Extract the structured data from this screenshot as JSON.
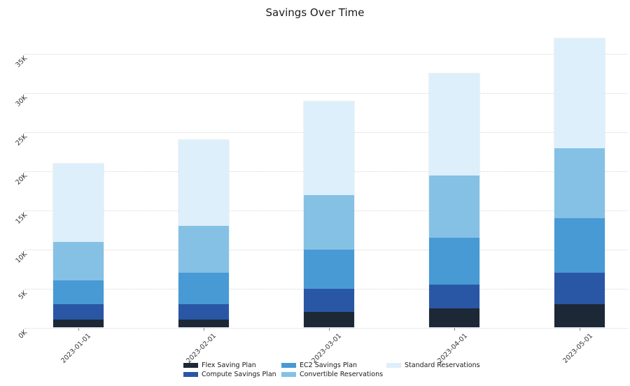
{
  "title": "Savings Over Time",
  "chart_data": {
    "type": "bar",
    "stacked": true,
    "title": "Savings Over Time",
    "xlabel": "",
    "ylabel": "",
    "grid": "horizontal-dotted",
    "legend_position": "bottom",
    "ylim": [
      0,
      38000
    ],
    "categories": [
      "2023-01-01",
      "2023-02-01",
      "2023-03-01",
      "2023-04-01",
      "2023-05-01"
    ],
    "series": [
      {
        "name": "Flex Saving Plan",
        "color": "#1d2837",
        "values": [
          1000,
          1000,
          2000,
          2500,
          3000
        ]
      },
      {
        "name": "Compute Savings Plan",
        "color": "#2a57a5",
        "values": [
          2000,
          2000,
          3000,
          3000,
          4000
        ]
      },
      {
        "name": "EC2 Savings Plan",
        "color": "#489ad4",
        "values": [
          3000,
          4000,
          5000,
          6000,
          7000
        ]
      },
      {
        "name": "Convertible Reservations",
        "color": "#85c1e5",
        "values": [
          5000,
          6000,
          7000,
          8000,
          9000
        ]
      },
      {
        "name": "Standard Reservations",
        "color": "#ddeffa",
        "values": [
          10000,
          11000,
          12000,
          13000,
          14000
        ]
      }
    ],
    "totals": [
      21000,
      24000,
      29000,
      32500,
      37000
    ],
    "yticks": [
      {
        "value": 0,
        "label": "0K"
      },
      {
        "value": 5000,
        "label": "5K"
      },
      {
        "value": 10000,
        "label": "10K"
      },
      {
        "value": 15000,
        "label": "15K"
      },
      {
        "value": 20000,
        "label": "20K"
      },
      {
        "value": 25000,
        "label": "25K"
      },
      {
        "value": 30000,
        "label": "30K"
      },
      {
        "value": 35000,
        "label": "35K"
      }
    ],
    "gridline_color": "#d6d6d6",
    "text_color": "#333333",
    "title_color": "#1a1a1a"
  }
}
